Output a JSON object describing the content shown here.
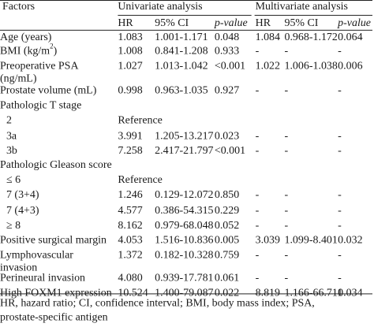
{
  "header": {
    "factors": "Factors",
    "univariate": "Univariate analysis",
    "multivariate": "Multivariate analysis",
    "hr": "HR",
    "ci": "95% CI",
    "pvalue": "p-value"
  },
  "rows": [
    {
      "label": "Age (years)",
      "u_hr": "1.083",
      "u_ci": "1.001-1.171",
      "u_p": "0.048",
      "m_hr": "1.084",
      "m_ci": "0.968-1.172",
      "m_p": "0.064"
    },
    {
      "label": "BMI (kg/m",
      "label_sup": "2",
      "label_end": ")",
      "u_hr": "1.008",
      "u_ci": "0.841-1.208",
      "u_p": "0.933",
      "m_hr": "-",
      "m_ci": "-",
      "m_p": "-"
    },
    {
      "label": "Preoperative PSA",
      "label2": "(ng/mL)",
      "u_hr": "1.027",
      "u_ci": "1.013-1.042",
      "u_p": "<0.001",
      "m_hr": "1.022",
      "m_ci": "1.006-1.038",
      "m_p": "0.006"
    },
    {
      "label": "Prostate volume (mL)",
      "u_hr": "0.998",
      "u_ci": "0.963-1.035",
      "u_p": "0.927",
      "m_hr": "-",
      "m_ci": "-",
      "m_p": "-"
    },
    {
      "label": "Pathologic T stage",
      "u_hr": "",
      "u_ci": "",
      "u_p": "",
      "m_hr": "",
      "m_ci": "",
      "m_p": ""
    },
    {
      "label": "2",
      "indent": true,
      "u_hr": "Reference",
      "u_ci": "",
      "u_p": "",
      "m_hr": "",
      "m_ci": "",
      "m_p": ""
    },
    {
      "label": "3a",
      "indent": true,
      "u_hr": "3.991",
      "u_ci": "1.205-13.217",
      "u_p": "0.023",
      "m_hr": "-",
      "m_ci": "-",
      "m_p": "-"
    },
    {
      "label": "3b",
      "indent": true,
      "u_hr": "7.258",
      "u_ci": "2.417-21.797",
      "u_p": "<0.001",
      "m_hr": "-",
      "m_ci": "-",
      "m_p": "-"
    },
    {
      "label": "Pathologic Gleason score",
      "u_hr": "",
      "u_ci": "",
      "u_p": "",
      "m_hr": "",
      "m_ci": "",
      "m_p": ""
    },
    {
      "label": "≤ 6",
      "indent": true,
      "u_hr": "Reference",
      "u_ci": "",
      "u_p": "",
      "m_hr": "",
      "m_ci": "",
      "m_p": ""
    },
    {
      "label": "7 (3+4)",
      "indent": true,
      "u_hr": "1.246",
      "u_ci": "0.129-12.072",
      "u_p": "0.850",
      "m_hr": "-",
      "m_ci": "-",
      "m_p": "-"
    },
    {
      "label": "7 (4+3)",
      "indent": true,
      "u_hr": "4.577",
      "u_ci": "0.386-54.315",
      "u_p": "0.229",
      "m_hr": "-",
      "m_ci": "-",
      "m_p": "-"
    },
    {
      "label": "≥ 8",
      "indent": true,
      "u_hr": "8.162",
      "u_ci": "0.979-68.048",
      "u_p": "0.052",
      "m_hr": "-",
      "m_ci": "-",
      "m_p": "-"
    },
    {
      "label": "Positive surgical margin",
      "u_hr": "4.053",
      "u_ci": "1.516-10.836",
      "u_p": "0.005",
      "m_hr": "3.039",
      "m_ci": "1.099-8.401",
      "m_p": "0.032"
    },
    {
      "label": "Lymphovascular",
      "label2": "invasion",
      "u_hr": "1.372",
      "u_ci": "0.182-10.328",
      "u_p": "0.759",
      "m_hr": "-",
      "m_ci": "-",
      "m_p": "-"
    },
    {
      "label": "Perineural invasion",
      "u_hr": "4.080",
      "u_ci": "0.939-17.781",
      "u_p": "0.061",
      "m_hr": "-",
      "m_ci": "-",
      "m_p": "-"
    },
    {
      "label": "High FOXM1 expression",
      "u_hr": "10.524",
      "u_ci": "1.400-79.087",
      "u_p": "0.022",
      "m_hr": "8.819",
      "m_ci": "1.166-66.711",
      "m_p": "0.034"
    }
  ],
  "footnote": {
    "line1": "HR, hazard ratio; CI, confidence interval; BMI, body mass index; PSA,",
    "line2": "prostate-specific antigen"
  }
}
